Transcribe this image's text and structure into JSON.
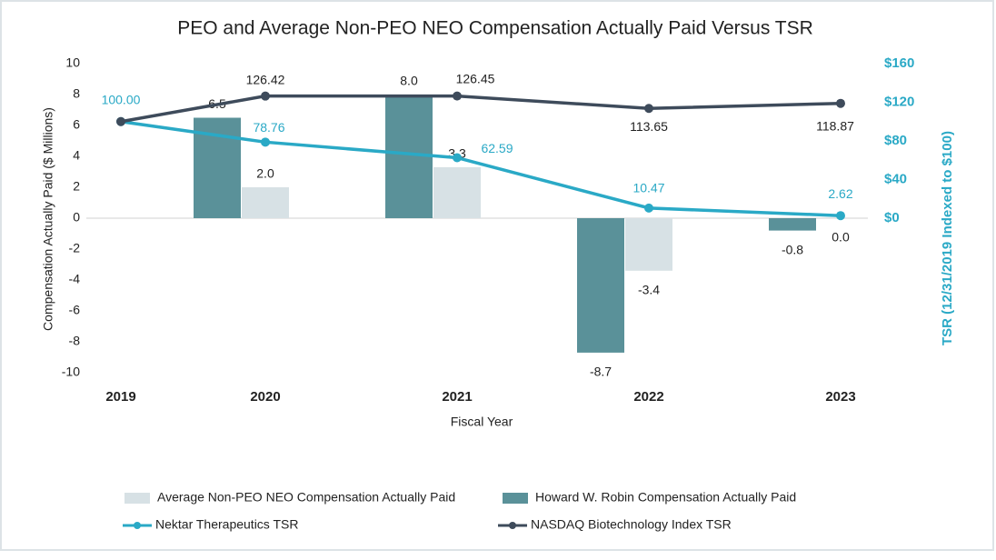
{
  "chart_data": {
    "type": "bar",
    "title": "PEO and Average Non-PEO NEO Compensation Actually Paid Versus TSR",
    "x_label": "Fiscal Year",
    "y_label": "Compensation Actually Paid ($ Millions)",
    "y2_label": "TSR (12/31/2019 Indexed to $100)",
    "categories": [
      "2019",
      "2020",
      "2021",
      "2022",
      "2023"
    ],
    "ylim": [
      -10,
      10
    ],
    "yticks": [
      -10,
      -8,
      -6,
      -4,
      -2,
      0,
      2,
      4,
      6,
      8,
      10
    ],
    "y2lim": [
      -160,
      160
    ],
    "y2ticks": [
      {
        "value": 0,
        "label": "$0"
      },
      {
        "value": 40,
        "label": "$40"
      },
      {
        "value": 80,
        "label": "$80"
      },
      {
        "value": 120,
        "label": "$120"
      },
      {
        "value": 160,
        "label": "$160"
      }
    ],
    "series": [
      {
        "name": "Average Non-PEO NEO Compensation Actually Paid",
        "type": "bar",
        "color": "#d7e1e5",
        "values": [
          null,
          2.0,
          3.3,
          -3.4,
          0.0
        ],
        "value_labels": [
          null,
          "2.0",
          "3.3",
          "-3.4",
          "0.0"
        ]
      },
      {
        "name": "Howard W. Robin Compensation Actually Paid",
        "type": "bar",
        "color": "#5a9199",
        "values": [
          null,
          6.5,
          8.0,
          -8.7,
          -0.8
        ],
        "value_labels": [
          null,
          "6.5",
          "8.0",
          "-8.7",
          "-0.8"
        ]
      },
      {
        "name": "Nektar Therapeutics TSR",
        "type": "line",
        "axis": "y2",
        "color": "#2aa9c6",
        "values": [
          100,
          78.76,
          62.59,
          10.47,
          2.62
        ],
        "value_labels": [
          "100.00",
          "78.76",
          "62.59",
          "10.47",
          "2.62"
        ]
      },
      {
        "name": "NASDAQ Biotechnology Index TSR",
        "type": "line",
        "axis": "y2",
        "color": "#3e4b5b",
        "values": [
          100,
          126.42,
          126.45,
          113.65,
          118.87
        ],
        "value_labels": [
          null,
          "126.42",
          "126.45",
          "113.65",
          "118.87"
        ]
      }
    ]
  }
}
